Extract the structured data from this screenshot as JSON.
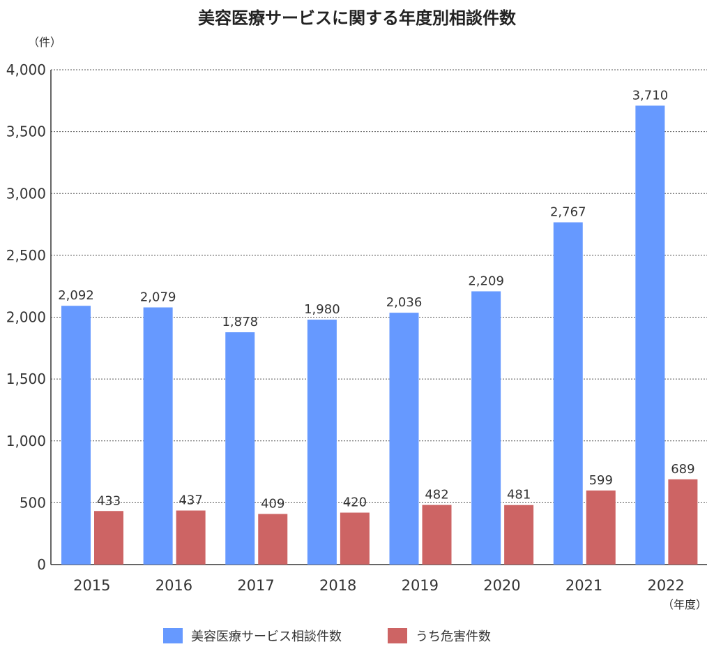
{
  "chart_data": {
    "type": "bar",
    "title": "美容医療サービスに関する年度別相談件数",
    "ylabel": "（件）",
    "xlabel": "（年度）",
    "categories": [
      "2015",
      "2016",
      "2017",
      "2018",
      "2019",
      "2020",
      "2021",
      "2022"
    ],
    "series": [
      {
        "name": "美容医療サービス相談件数",
        "color": "#6699FF",
        "values": [
          2092,
          2079,
          1878,
          1980,
          2036,
          2209,
          2767,
          3710
        ],
        "labels": [
          "2,092",
          "2,079",
          "1,878",
          "1,980",
          "2,036",
          "2,209",
          "2,767",
          "3,710"
        ]
      },
      {
        "name": "うち危害件数",
        "color": "#CD6464",
        "values": [
          433,
          437,
          409,
          420,
          482,
          481,
          599,
          689
        ],
        "labels": [
          "433",
          "437",
          "409",
          "420",
          "482",
          "481",
          "599",
          "689"
        ]
      }
    ],
    "ylim": [
      0,
      4000
    ],
    "yticks": [
      0,
      500,
      1000,
      1500,
      2000,
      2500,
      3000,
      3500,
      4000
    ],
    "ytick_labels": [
      "0",
      "500",
      "1,000",
      "1,500",
      "2,000",
      "2,500",
      "3,000",
      "3,500",
      "4,000"
    ],
    "grid": true,
    "legend": "bottom"
  }
}
